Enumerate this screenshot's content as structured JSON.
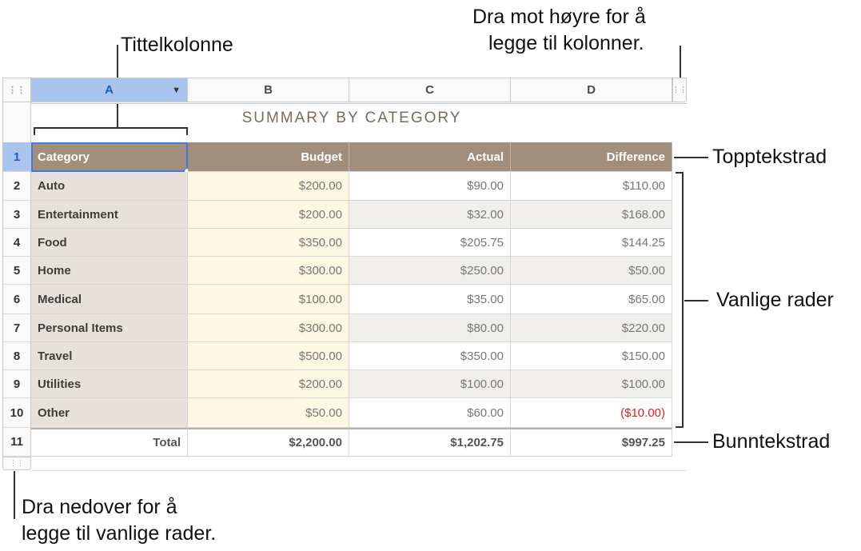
{
  "callouts": {
    "title_column": "Tittelkolonne",
    "add_columns_1": "Dra mot høyre for å",
    "add_columns_2": "legge til kolonner.",
    "header_row": "Topptekstrad",
    "body_rows": "Vanlige rader",
    "footer_row": "Bunntekstrad",
    "add_rows_1": "Dra nedover for å",
    "add_rows_2": "legge til vanlige rader."
  },
  "columns": [
    "A",
    "B",
    "C",
    "D"
  ],
  "row_numbers": [
    "1",
    "2",
    "3",
    "4",
    "5",
    "6",
    "7",
    "8",
    "9",
    "10",
    "11"
  ],
  "grip_icon": "⋮⋮",
  "dropdown_icon": "▼",
  "table_title": "SUMMARY BY CATEGORY",
  "header": {
    "category": "Category",
    "budget": "Budget",
    "actual": "Actual",
    "difference": "Difference"
  },
  "rows": [
    {
      "category": "Auto",
      "budget": "$200.00",
      "actual": "$90.00",
      "difference": "$110.00"
    },
    {
      "category": "Entertainment",
      "budget": "$200.00",
      "actual": "$32.00",
      "difference": "$168.00"
    },
    {
      "category": "Food",
      "budget": "$350.00",
      "actual": "$205.75",
      "difference": "$144.25"
    },
    {
      "category": "Home",
      "budget": "$300.00",
      "actual": "$250.00",
      "difference": "$50.00"
    },
    {
      "category": "Medical",
      "budget": "$100.00",
      "actual": "$35.00",
      "difference": "$65.00"
    },
    {
      "category": "Personal Items",
      "budget": "$300.00",
      "actual": "$80.00",
      "difference": "$220.00"
    },
    {
      "category": "Travel",
      "budget": "$500.00",
      "actual": "$350.00",
      "difference": "$150.00"
    },
    {
      "category": "Utilities",
      "budget": "$200.00",
      "actual": "$100.00",
      "difference": "$100.00"
    },
    {
      "category": "Other",
      "budget": "$50.00",
      "actual": "$60.00",
      "difference": "($10.00)"
    }
  ],
  "footer": {
    "label": "Total",
    "budget": "$2,200.00",
    "actual": "$1,202.75",
    "difference": "$997.25"
  },
  "colors": {
    "header_row": "#a28e7b",
    "title_column": "#e6e1db",
    "budget_column": "#fdf7e3",
    "selection": "#a9c4ee",
    "negative": "#e02020"
  }
}
